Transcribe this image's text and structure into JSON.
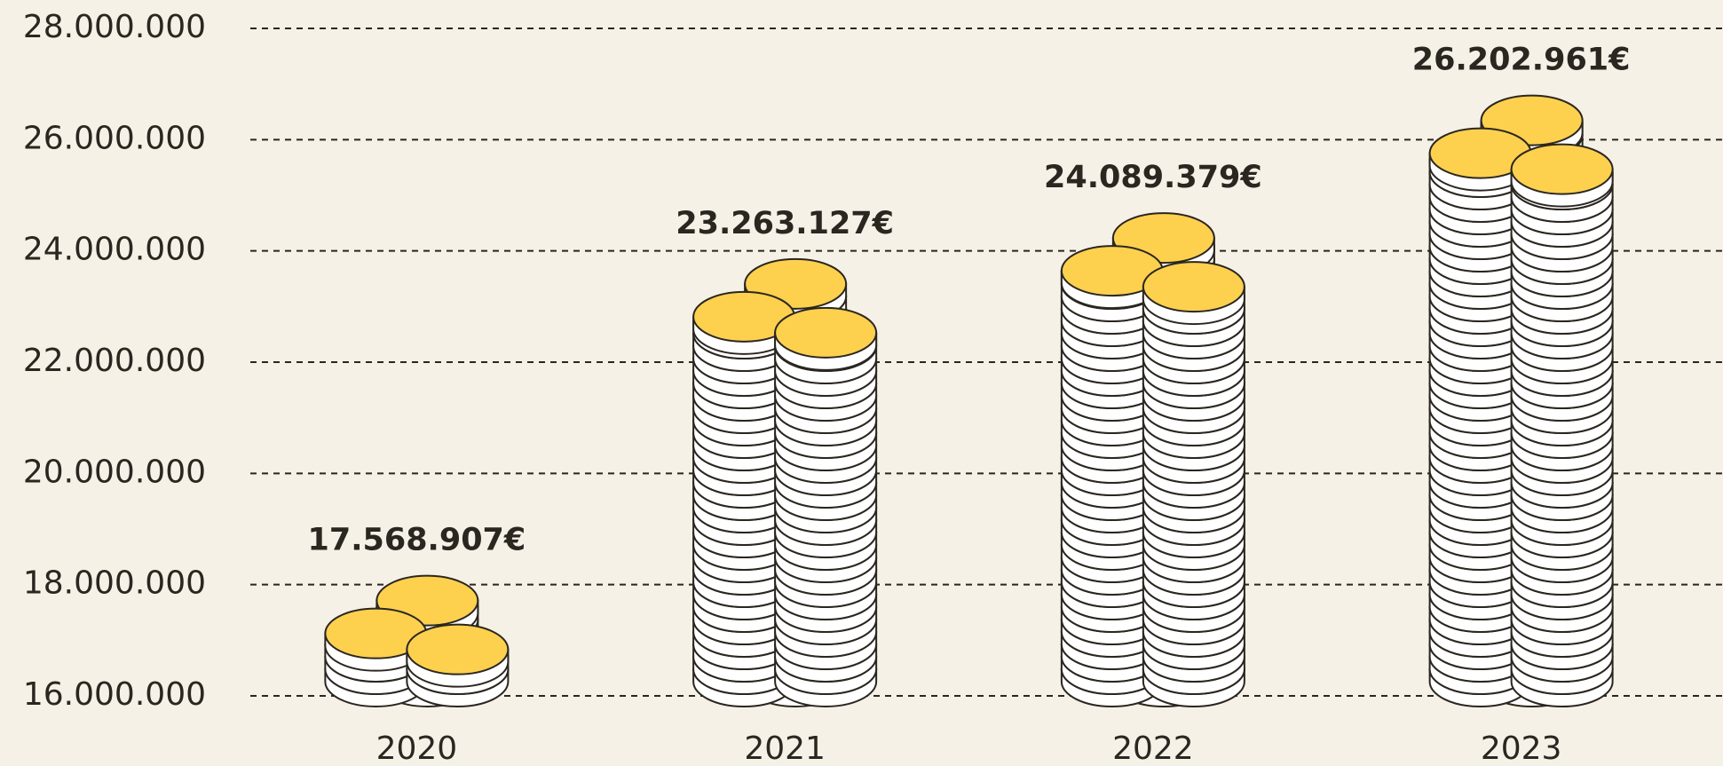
{
  "chart_data": {
    "type": "bar",
    "categories": [
      "2020",
      "2021",
      "2022",
      "2023"
    ],
    "values": [
      17568907,
      23263127,
      24089379,
      26202961
    ],
    "value_labels": [
      "17.568.907€",
      "23.263.127€",
      "24.089.379€",
      "26.202.961€"
    ],
    "color": "#fdd04e",
    "ylim": [
      16000000,
      28000000
    ],
    "yticks": [
      {
        "value": 16000000,
        "label": "16.000.000"
      },
      {
        "value": 18000000,
        "label": "18.000.000"
      },
      {
        "value": 20000000,
        "label": "20.000.000"
      },
      {
        "value": 22000000,
        "label": "22.000.000"
      },
      {
        "value": 24000000,
        "label": "24.000.000"
      },
      {
        "value": 26000000,
        "label": "26.000.000"
      },
      {
        "value": 28000000,
        "label": "28.000.000"
      }
    ],
    "grid": true
  }
}
